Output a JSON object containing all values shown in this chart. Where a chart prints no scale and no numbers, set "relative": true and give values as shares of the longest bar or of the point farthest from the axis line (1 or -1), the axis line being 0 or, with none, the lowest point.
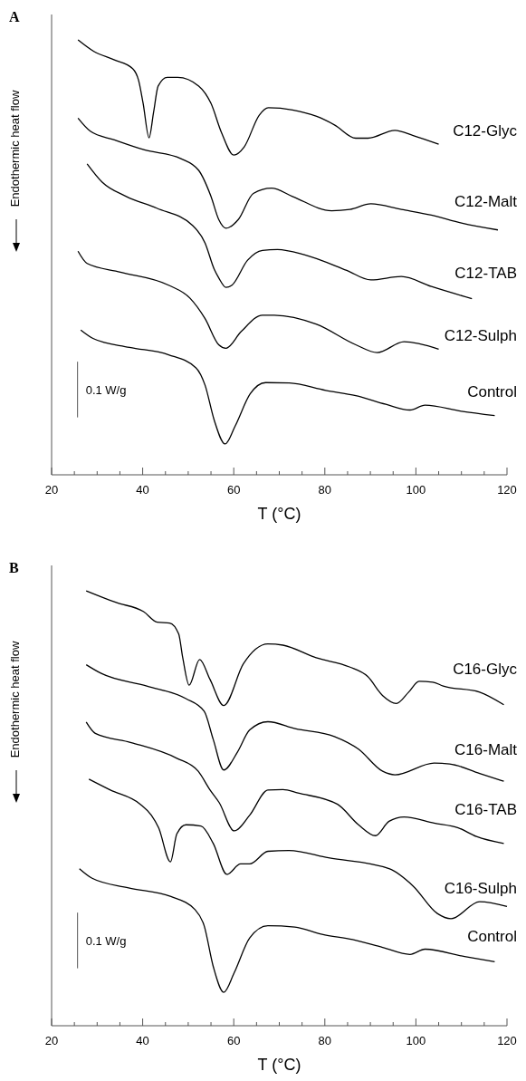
{
  "chart_data": [
    {
      "type": "line",
      "title": "A",
      "xlabel": "T  (°C)",
      "ylabel": "Endothermic heat flow",
      "relative": true,
      "annotations": [
        "0.1 W/g"
      ],
      "xlim": [
        20,
        120
      ],
      "xticks": [
        20,
        {
          "value": 25,
          "label": null
        },
        {
          "value": 30,
          "label": null
        },
        {
          "value": 35,
          "label": null
        },
        40,
        {
          "value": 45,
          "label": null
        },
        {
          "value": 50,
          "label": null
        },
        {
          "value": 55,
          "label": null
        },
        60,
        {
          "value": 65,
          "label": null
        },
        {
          "value": 70,
          "label": null
        },
        {
          "value": 75,
          "label": null
        },
        80,
        {
          "value": 85,
          "label": null
        },
        {
          "value": 90,
          "label": null
        },
        {
          "value": 95,
          "label": null
        },
        100,
        {
          "value": 105,
          "label": null
        },
        {
          "value": 110,
          "label": null
        },
        {
          "value": 115,
          "label": null
        },
        120
      ],
      "series": [
        {
          "name": "C12-Glyc",
          "color": "#000000",
          "x": [
            25.8,
            29.2,
            33.8,
            37.8,
            39.1,
            40.1,
            41.4,
            42.4,
            43.4,
            45.4,
            47.7,
            52.3,
            55.0,
            57.3,
            60.0,
            62.3,
            65.6,
            67.6,
            72.9,
            78.2,
            82.2,
            86.8,
            89.5,
            95.4,
            99.4,
            105.0
          ],
          "values": [
            1.0,
            0.974,
            0.954,
            0.934,
            0.907,
            0.854,
            0.775,
            0.834,
            0.894,
            0.914,
            0.914,
            0.894,
            0.854,
            0.787,
            0.735,
            0.754,
            0.827,
            0.844,
            0.839,
            0.824,
            0.804,
            0.774,
            0.774,
            0.792,
            0.78,
            0.76
          ]
        },
        {
          "name": "C12-Malt",
          "color": "#000000",
          "x": [
            25.8,
            28.5,
            33.8,
            40.4,
            48.4,
            52.3,
            55.0,
            56.7,
            58.3,
            61.0,
            64.3,
            68.3,
            72.9,
            81.5,
            85.5,
            90.1,
            96.8,
            103.4,
            110.0,
            118.0
          ],
          "values": [
            0.82,
            0.79,
            0.77,
            0.747,
            0.727,
            0.7,
            0.64,
            0.587,
            0.567,
            0.587,
            0.647,
            0.659,
            0.64,
            0.607,
            0.61,
            0.623,
            0.61,
            0.597,
            0.579,
            0.563
          ]
        },
        {
          "name": "C12-TAB",
          "color": "#000000",
          "x": [
            27.8,
            31.1,
            36.4,
            43.1,
            51.0,
            53.7,
            55.7,
            56.7,
            58.3,
            59.6,
            63.0,
            66.3,
            69.6,
            75.5,
            84.8,
            90.1,
            96.8,
            103.4,
            112.3
          ],
          "values": [
            0.715,
            0.673,
            0.64,
            0.613,
            0.573,
            0.533,
            0.473,
            0.453,
            0.431,
            0.436,
            0.493,
            0.516,
            0.518,
            0.506,
            0.47,
            0.448,
            0.456,
            0.433,
            0.405
          ]
        },
        {
          "name": "C12-Sulph",
          "color": "#000000",
          "x": [
            25.8,
            27.8,
            35.1,
            45.7,
            50.4,
            53.7,
            56.7,
            58.3,
            61.6,
            66.3,
            68.9,
            78.2,
            86.8,
            91.5,
            97.4,
            105.0
          ],
          "values": [
            0.514,
            0.486,
            0.466,
            0.436,
            0.406,
            0.359,
            0.299,
            0.291,
            0.329,
            0.367,
            0.367,
            0.346,
            0.299,
            0.281,
            0.306,
            0.289
          ]
        },
        {
          "name": "Control",
          "color": "#000000",
          "x": [
            26.4,
            29.2,
            37.1,
            45.7,
            51.7,
            53.7,
            55.7,
            58.1,
            60.3,
            63.6,
            67.0,
            72.2,
            80.2,
            86.8,
            93.4,
            98.7,
            102.0,
            110.0,
            117.3
          ],
          "values": [
            0.333,
            0.313,
            0.293,
            0.276,
            0.246,
            0.206,
            0.126,
            0.071,
            0.112,
            0.186,
            0.212,
            0.211,
            0.194,
            0.182,
            0.162,
            0.149,
            0.16,
            0.146,
            0.136
          ]
        }
      ]
    },
    {
      "type": "line",
      "title": "B",
      "xlabel": "T  (°C)",
      "ylabel": "Endothermic heat flow",
      "relative": true,
      "annotations": [
        "0.1 W/g"
      ],
      "xlim": [
        20,
        120
      ],
      "xticks": [
        20,
        {
          "value": 25,
          "label": null
        },
        {
          "value": 30,
          "label": null
        },
        {
          "value": 35,
          "label": null
        },
        40,
        {
          "value": 45,
          "label": null
        },
        {
          "value": 50,
          "label": null
        },
        {
          "value": 55,
          "label": null
        },
        60,
        {
          "value": 65,
          "label": null
        },
        {
          "value": 70,
          "label": null
        },
        {
          "value": 75,
          "label": null
        },
        80,
        {
          "value": 85,
          "label": null
        },
        {
          "value": 90,
          "label": null
        },
        {
          "value": 95,
          "label": null
        },
        100,
        {
          "value": 105,
          "label": null
        },
        {
          "value": 110,
          "label": null
        },
        {
          "value": 115,
          "label": null
        },
        120
      ],
      "series": [
        {
          "name": "C16-Glyc",
          "color": "#000000",
          "x": [
            27.6,
            34.2,
            40.2,
            43.2,
            45.9,
            47.9,
            48.8,
            50.2,
            52.5,
            54.8,
            57.8,
            62.1,
            67.5,
            70.8,
            78.1,
            85.4,
            89.4,
            92.7,
            95.7,
            98.4,
            100.7,
            103.7,
            106.0,
            114.0,
            119.3
          ],
          "values": [
            1.0,
            0.973,
            0.952,
            0.928,
            0.926,
            0.901,
            0.846,
            0.783,
            0.842,
            0.796,
            0.736,
            0.832,
            0.878,
            0.875,
            0.846,
            0.825,
            0.803,
            0.759,
            0.741,
            0.767,
            0.792,
            0.79,
            0.781,
            0.767,
            0.738
          ]
        },
        {
          "name": "C16-Malt",
          "color": "#000000",
          "x": [
            27.6,
            30.9,
            40.9,
            49.5,
            53.5,
            55.5,
            57.8,
            60.8,
            63.5,
            67.5,
            73.5,
            82.1,
            87.4,
            92.7,
            95.4,
            104.0,
            107.4,
            114.0,
            119.3
          ],
          "values": [
            0.83,
            0.81,
            0.781,
            0.752,
            0.723,
            0.658,
            0.588,
            0.629,
            0.68,
            0.699,
            0.683,
            0.665,
            0.636,
            0.585,
            0.577,
            0.604,
            0.602,
            0.58,
            0.562
          ]
        },
        {
          "name": "C16-TAB",
          "color": "#000000",
          "x": [
            27.6,
            29.6,
            37.5,
            47.5,
            52.2,
            54.8,
            56.8,
            60.1,
            63.5,
            67.5,
            70.8,
            74.1,
            82.8,
            87.4,
            91.1,
            94.1,
            97.4,
            104.0,
            109.3,
            113.3,
            119.3
          ],
          "values": [
            0.698,
            0.672,
            0.651,
            0.615,
            0.585,
            0.542,
            0.513,
            0.448,
            0.484,
            0.542,
            0.543,
            0.535,
            0.509,
            0.462,
            0.437,
            0.47,
            0.48,
            0.466,
            0.455,
            0.435,
            0.419
          ]
        },
        {
          "name": "C16-Sulph",
          "color": "#000000",
          "x": [
            28.2,
            32.9,
            39.5,
            41.9,
            43.5,
            46.1,
            47.5,
            49.5,
            52.8,
            55.5,
            58.5,
            61.5,
            63.5,
            67.5,
            72.1,
            80.8,
            94.1,
            99.4,
            104.7,
            107.7,
            114.0,
            120.0
          ],
          "values": [
            0.567,
            0.542,
            0.509,
            0.484,
            0.455,
            0.377,
            0.441,
            0.462,
            0.459,
            0.419,
            0.348,
            0.372,
            0.372,
            0.401,
            0.403,
            0.386,
            0.361,
            0.321,
            0.258,
            0.246,
            0.285,
            0.274
          ]
        },
        {
          "name": "Control",
          "color": "#000000",
          "x": [
            26.1,
            28.9,
            36.9,
            46.2,
            51.5,
            53.5,
            55.5,
            57.8,
            60.1,
            63.5,
            67.5,
            73.4,
            79.4,
            86.1,
            92.7,
            98.7,
            102.0,
            110.7,
            117.3
          ],
          "values": [
            0.361,
            0.339,
            0.317,
            0.297,
            0.267,
            0.23,
            0.136,
            0.077,
            0.122,
            0.202,
            0.23,
            0.227,
            0.21,
            0.198,
            0.18,
            0.164,
            0.176,
            0.159,
            0.147
          ]
        }
      ]
    }
  ]
}
